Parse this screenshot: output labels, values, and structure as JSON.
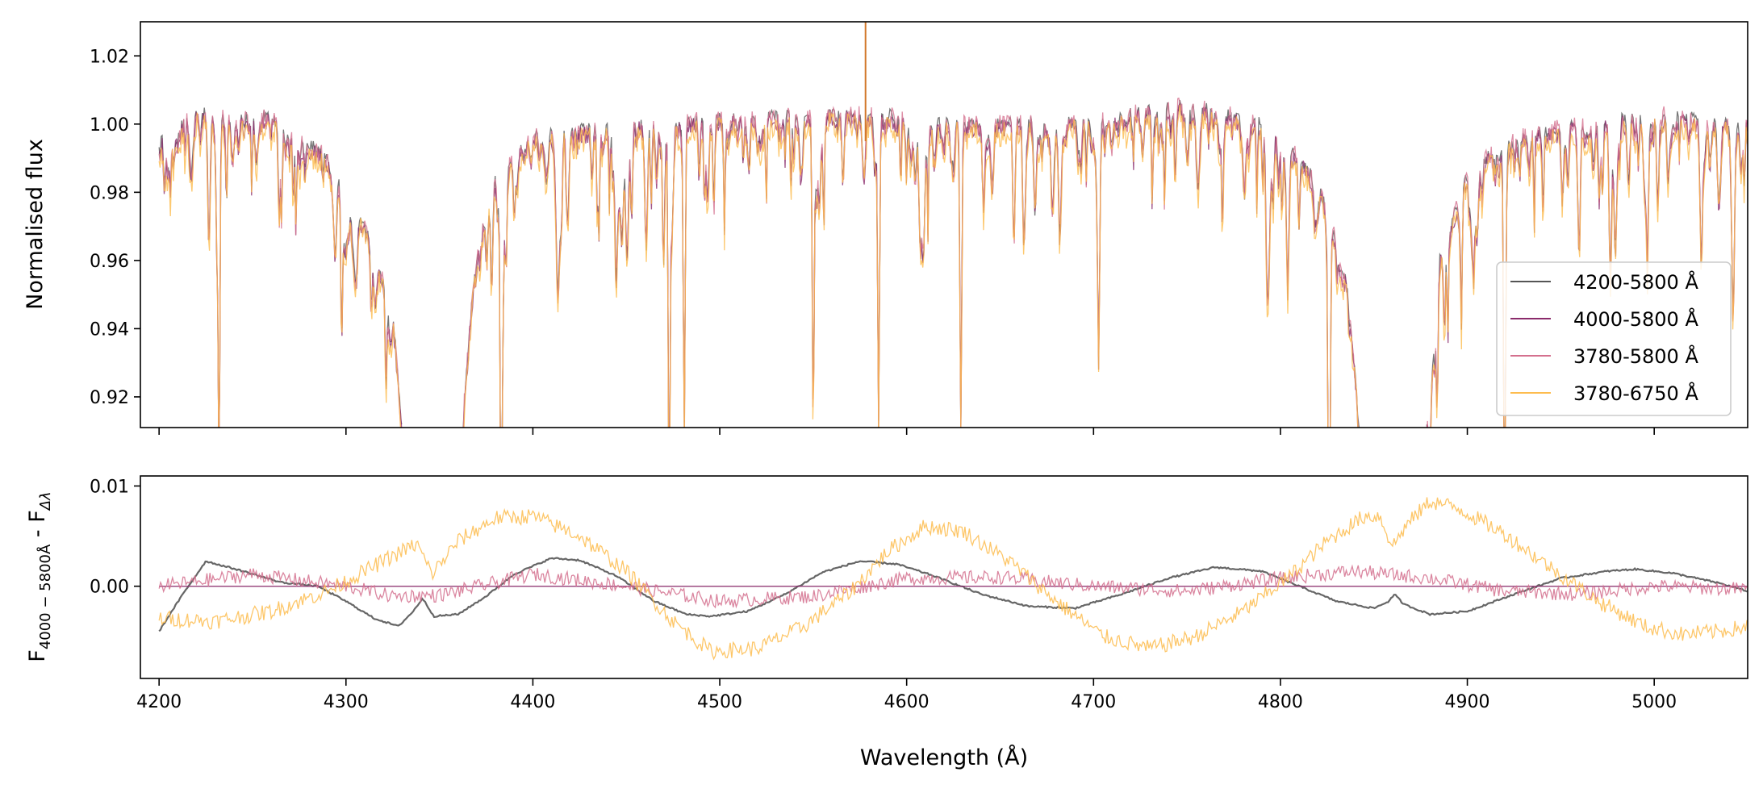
{
  "chart_data": [
    {
      "type": "line",
      "panel": "top",
      "ylabel": "Normalised flux",
      "xlim": [
        4190,
        5050
      ],
      "ylim": [
        0.911,
        1.03
      ],
      "yticks": [
        0.92,
        0.94,
        0.96,
        0.98,
        1.0,
        1.02
      ],
      "ytick_labels": [
        "0.92",
        "0.94",
        "0.96",
        "0.98",
        "1.00",
        "1.02"
      ],
      "xticks": [
        4200,
        4300,
        4400,
        4500,
        4600,
        4700,
        4800,
        4900,
        5000
      ],
      "legend_position": "lower-right",
      "series": [
        {
          "name": "4200-5800 Å",
          "color": "#555555"
        },
        {
          "name": "4000-5800 Å",
          "color": "#8a2b6b"
        },
        {
          "name": "3780-5800 Å",
          "color": "#d4708e"
        },
        {
          "name": "3780-6750 Å",
          "color": "#fdbc4e"
        }
      ],
      "continuum_envelope": {
        "x": [
          4200,
          4220,
          4260,
          4290,
          4310,
          4325,
          4330,
          4362,
          4370,
          4380,
          4400,
          4460,
          4520,
          4580,
          4640,
          4700,
          4750,
          4790,
          4810,
          4820,
          4825,
          4835,
          4843,
          4878,
          4885,
          4900,
          4920,
          4960,
          5000,
          5050
        ],
        "y": [
          0.995,
          1.003,
          1.002,
          0.99,
          0.97,
          0.945,
          0.91,
          0.91,
          0.965,
          0.985,
          0.997,
          1.0,
          1.002,
          1.003,
          1.0,
          1.001,
          1.006,
          1.0,
          0.99,
          0.982,
          0.975,
          0.955,
          0.91,
          0.91,
          0.96,
          0.985,
          0.995,
          1.0,
          1.003,
          1.0
        ]
      },
      "notable_features": {
        "balmer_gaps_angstrom": [
          [
            4330,
            4362
          ],
          [
            4843,
            4878
          ]
        ],
        "spike_at": 4578,
        "strong_absorption_at": [
          4232,
          4383,
          4473,
          4481,
          4550,
          4585,
          4629,
          4826,
          4920
        ]
      }
    },
    {
      "type": "line",
      "panel": "bottom",
      "xlabel": "Wavelength (Å)",
      "ylabel_main": "F",
      "ylabel_sub": "4000 − 5800Å",
      "ylabel_mid": " - F",
      "ylabel_sub2": "Δλ",
      "xlim": [
        4190,
        5050
      ],
      "ylim": [
        -0.0092,
        0.011
      ],
      "yticks": [
        0.0,
        0.01
      ],
      "ytick_labels": [
        "0.00",
        "0.01"
      ],
      "xticks": [
        4200,
        4300,
        4400,
        4500,
        4600,
        4700,
        4800,
        4900,
        5000
      ],
      "xtick_labels": [
        "4200",
        "4300",
        "4400",
        "4500",
        "4600",
        "4700",
        "4800",
        "4900",
        "5000"
      ],
      "series": [
        {
          "name": "4200-5800 Å",
          "color": "#555555",
          "x": [
            4200,
            4212,
            4225,
            4245,
            4265,
            4285,
            4300,
            4315,
            4328,
            4336,
            4341,
            4347,
            4360,
            4375,
            4390,
            4410,
            4425,
            4445,
            4465,
            4482,
            4495,
            4515,
            4535,
            4555,
            4575,
            4595,
            4615,
            4640,
            4665,
            4690,
            4715,
            4740,
            4765,
            4790,
            4810,
            4830,
            4850,
            4858,
            4861,
            4866,
            4880,
            4900,
            4925,
            4950,
            4975,
            4990,
            5010,
            5035,
            5050
          ],
          "y": [
            -0.0045,
            -0.001,
            0.0025,
            0.0015,
            0.0004,
            0.0,
            -0.0015,
            -0.0032,
            -0.004,
            -0.0025,
            -0.0012,
            -0.003,
            -0.0028,
            -0.001,
            0.0012,
            0.0028,
            0.0026,
            0.001,
            -0.0015,
            -0.0028,
            -0.003,
            -0.0025,
            -0.0008,
            0.0014,
            0.0025,
            0.0022,
            0.001,
            -0.0008,
            -0.002,
            -0.0022,
            -0.0008,
            0.0008,
            0.0019,
            0.0015,
            0.0,
            -0.0015,
            -0.0022,
            -0.0015,
            -0.0008,
            -0.0018,
            -0.0028,
            -0.0025,
            -0.0008,
            0.0008,
            0.0015,
            0.0017,
            0.0013,
            0.0003,
            -0.0005
          ]
        },
        {
          "name": "4000-5800 Å",
          "color": "#8a2b6b",
          "x": [
            4200,
            5050
          ],
          "y": [
            0.0,
            0.0
          ]
        },
        {
          "name": "3780-5800 Å",
          "color": "#d4708e",
          "x": [
            4200,
            4250,
            4300,
            4325,
            4350,
            4400,
            4450,
            4500,
            4550,
            4600,
            4650,
            4700,
            4750,
            4800,
            4840,
            4880,
            4920,
            4960,
            5000,
            5050
          ],
          "y": [
            0.0,
            0.0012,
            0.0,
            -0.001,
            -0.0009,
            0.0012,
            0.0,
            -0.0015,
            -0.001,
            0.0008,
            0.0009,
            0.0,
            -0.0005,
            0.0008,
            0.0015,
            0.0008,
            -0.0005,
            -0.0008,
            0.0,
            -0.0003
          ]
        },
        {
          "name": "3780-6750 Å",
          "color": "#fdbc4e",
          "x": [
            4200,
            4230,
            4260,
            4290,
            4315,
            4330,
            4338,
            4346,
            4360,
            4380,
            4400,
            4425,
            4450,
            4475,
            4495,
            4520,
            4545,
            4570,
            4590,
            4610,
            4630,
            4655,
            4680,
            4705,
            4730,
            4755,
            4780,
            4805,
            4825,
            4845,
            4853,
            4860,
            4867,
            4880,
            4895,
            4920,
            4945,
            4970,
            4995,
            5015,
            5035,
            5050
          ],
          "y": [
            -0.0032,
            -0.0035,
            -0.0025,
            -0.0005,
            0.002,
            0.0035,
            0.0042,
            0.0012,
            0.0045,
            0.0068,
            0.007,
            0.005,
            0.0015,
            -0.0035,
            -0.0065,
            -0.0062,
            -0.004,
            -0.0005,
            0.0035,
            0.006,
            0.0055,
            0.0025,
            -0.0015,
            -0.005,
            -0.0062,
            -0.005,
            -0.0025,
            0.001,
            0.0045,
            0.007,
            0.007,
            0.004,
            0.006,
            0.0085,
            0.0078,
            0.0052,
            0.0018,
            -0.0015,
            -0.004,
            -0.0048,
            -0.0045,
            -0.004
          ]
        }
      ]
    }
  ]
}
